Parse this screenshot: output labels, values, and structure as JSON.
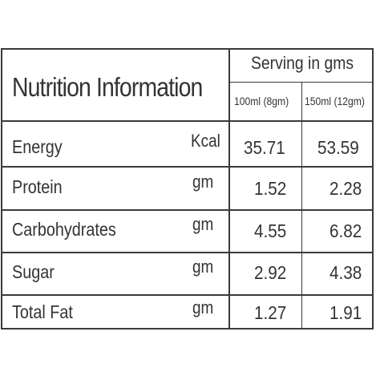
{
  "title": "Nutrition Information",
  "serving_header": "Serving in gms",
  "columns": [
    "100ml (8gm)",
    "150ml (12gm)"
  ],
  "rows": [
    {
      "name": "Energy",
      "unit": "Kcal",
      "values": [
        "35.71",
        "53.59"
      ]
    },
    {
      "name": "Protein",
      "unit": "gm",
      "values": [
        "1.52",
        "2.28"
      ]
    },
    {
      "name": "Carbohydrates",
      "unit": "gm",
      "values": [
        "4.55",
        "6.82"
      ]
    },
    {
      "name": "Sugar",
      "unit": "gm",
      "values": [
        "2.92",
        "4.38"
      ]
    },
    {
      "name": "Total Fat",
      "unit": "gm",
      "values": [
        "1.27",
        "1.91"
      ]
    }
  ],
  "colors": {
    "text": "#333333",
    "border": "#3a3a3a",
    "background": "#ffffff"
  }
}
